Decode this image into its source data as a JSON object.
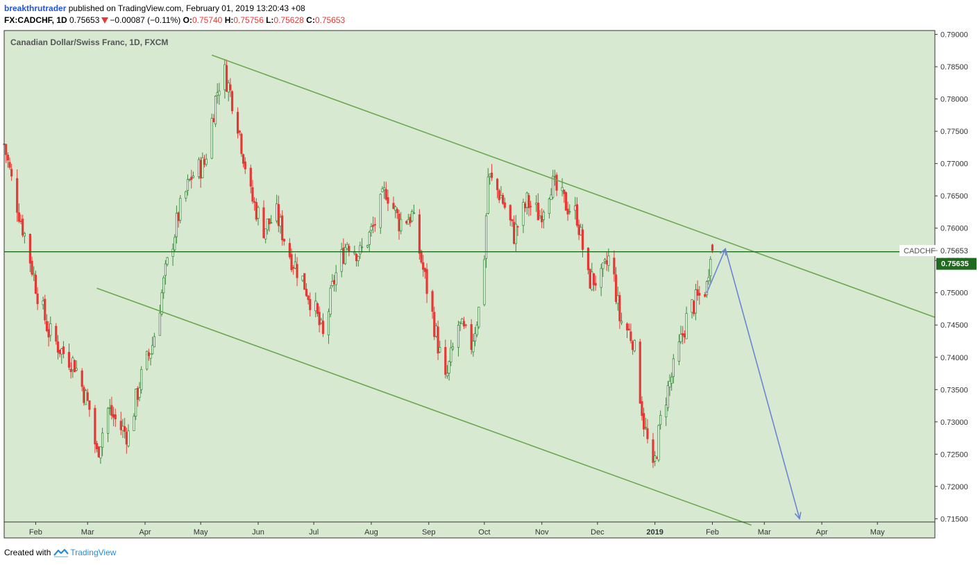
{
  "header": {
    "author": "breakthrutrader",
    "published_text": "published on TradingView.com, February 01, 2019 13:20:43 +08",
    "symbol": "FX:CADCHF, 1D",
    "last": "0.75653",
    "change": "−0.00087 (−0.11%)",
    "o_label": "O:",
    "o_value": "0.75740",
    "h_label": "H:",
    "h_value": "0.75756",
    "l_label": "L:",
    "l_value": "0.75628",
    "c_label": "C:",
    "c_value": "0.75653"
  },
  "footer": {
    "created_with": "Created with",
    "brand": "TradingView"
  },
  "colors": {
    "background": "#d8e9d2",
    "frame": "#333333",
    "up_candle": "#3b8a3b",
    "down_candle": "#e53935",
    "channel_lines": "#6aa84f",
    "price_line": "#1e6b1e",
    "arrow": "#6a85d0",
    "axis_text": "#333333"
  },
  "chart_data": {
    "type": "candlestick",
    "title": "Canadian Dollar/Swiss Franc, 1D, FXCM",
    "symbol_label": "CADCHF",
    "last_price_label": "0.75653",
    "current_price_label": "0.75635",
    "ylim": [
      0.7145,
      0.7906
    ],
    "y_ticks": [
      "0.79000",
      "0.78500",
      "0.78000",
      "0.77500",
      "0.77000",
      "0.76500",
      "0.76000",
      "0.75500",
      "0.75000",
      "0.74500",
      "0.74000",
      "0.73500",
      "0.73000",
      "0.72500",
      "0.72000",
      "0.71500"
    ],
    "x_start": "2018-01-15",
    "x_end": "2019-06-01",
    "x_ticks": [
      {
        "date": "2018-02-01",
        "label": "Feb"
      },
      {
        "date": "2018-03-01",
        "label": "Mar"
      },
      {
        "date": "2018-04-01",
        "label": "Apr"
      },
      {
        "date": "2018-05-01",
        "label": "May"
      },
      {
        "date": "2018-06-01",
        "label": "Jun"
      },
      {
        "date": "2018-07-01",
        "label": "Jul"
      },
      {
        "date": "2018-08-01",
        "label": "Aug"
      },
      {
        "date": "2018-09-01",
        "label": "Sep"
      },
      {
        "date": "2018-10-01",
        "label": "Oct"
      },
      {
        "date": "2018-11-01",
        "label": "Nov"
      },
      {
        "date": "2018-12-01",
        "label": "Dec"
      },
      {
        "date": "2019-01-01",
        "label": "2019"
      },
      {
        "date": "2019-02-01",
        "label": "Feb"
      },
      {
        "date": "2019-03-01",
        "label": "Mar"
      },
      {
        "date": "2019-04-01",
        "label": "Apr"
      },
      {
        "date": "2019-05-01",
        "label": "May"
      }
    ],
    "path": [
      [
        "2018-01-15",
        0.773
      ],
      [
        "2018-01-20",
        0.766
      ],
      [
        "2018-01-26",
        0.759
      ],
      [
        "2018-02-02",
        0.75
      ],
      [
        "2018-02-08",
        0.744
      ],
      [
        "2018-02-15",
        0.741
      ],
      [
        "2018-02-22",
        0.739
      ],
      [
        "2018-03-02",
        0.732
      ],
      [
        "2018-03-06",
        0.725
      ],
      [
        "2018-03-12",
        0.732
      ],
      [
        "2018-03-19",
        0.729
      ],
      [
        "2018-03-23",
        0.728
      ],
      [
        "2018-03-29",
        0.736
      ],
      [
        "2018-04-05",
        0.742
      ],
      [
        "2018-04-12",
        0.753
      ],
      [
        "2018-04-19",
        0.762
      ],
      [
        "2018-04-26",
        0.768
      ],
      [
        "2018-05-03",
        0.77
      ],
      [
        "2018-05-09",
        0.78
      ],
      [
        "2018-05-13",
        0.785
      ],
      [
        "2018-05-20",
        0.778
      ],
      [
        "2018-05-28",
        0.765
      ],
      [
        "2018-06-04",
        0.76
      ],
      [
        "2018-06-11",
        0.762
      ],
      [
        "2018-06-18",
        0.756
      ],
      [
        "2018-06-25",
        0.752
      ],
      [
        "2018-07-02",
        0.747
      ],
      [
        "2018-07-06",
        0.743
      ],
      [
        "2018-07-12",
        0.752
      ],
      [
        "2018-07-19",
        0.758
      ],
      [
        "2018-07-26",
        0.756
      ],
      [
        "2018-08-02",
        0.76
      ],
      [
        "2018-08-09",
        0.766
      ],
      [
        "2018-08-16",
        0.761
      ],
      [
        "2018-08-23",
        0.762
      ],
      [
        "2018-08-28",
        0.755
      ],
      [
        "2018-09-04",
        0.745
      ],
      [
        "2018-09-10",
        0.736
      ],
      [
        "2018-09-17",
        0.745
      ],
      [
        "2018-09-24",
        0.742
      ],
      [
        "2018-09-30",
        0.75
      ],
      [
        "2018-10-03",
        0.768
      ],
      [
        "2018-10-10",
        0.765
      ],
      [
        "2018-10-17",
        0.759
      ],
      [
        "2018-10-24",
        0.764
      ],
      [
        "2018-10-31",
        0.762
      ],
      [
        "2018-11-06",
        0.767
      ],
      [
        "2018-11-13",
        0.764
      ],
      [
        "2018-11-20",
        0.762
      ],
      [
        "2018-11-26",
        0.752
      ],
      [
        "2018-12-03",
        0.752
      ],
      [
        "2018-12-08",
        0.756
      ],
      [
        "2018-12-13",
        0.746
      ],
      [
        "2018-12-20",
        0.743
      ],
      [
        "2018-12-26",
        0.73
      ],
      [
        "2018-12-31",
        0.722
      ],
      [
        "2019-01-05",
        0.732
      ],
      [
        "2019-01-12",
        0.739
      ],
      [
        "2019-01-19",
        0.747
      ],
      [
        "2019-01-24",
        0.749
      ],
      [
        "2019-01-29",
        0.751
      ],
      [
        "2019-01-31",
        0.757
      ],
      [
        "2019-02-01",
        0.75653
      ]
    ],
    "channel_upper": [
      [
        "2018-05-07",
        0.7868
      ],
      [
        "2019-06-01",
        0.7462
      ]
    ],
    "channel_lower": [
      [
        "2018-03-06",
        0.7507
      ],
      [
        "2019-02-22",
        0.714
      ]
    ],
    "horizontal_line": 0.75635,
    "arrow_path": [
      [
        "2019-01-29",
        0.75
      ],
      [
        "2019-02-08",
        0.7568
      ],
      [
        "2019-03-20",
        0.715
      ]
    ]
  }
}
